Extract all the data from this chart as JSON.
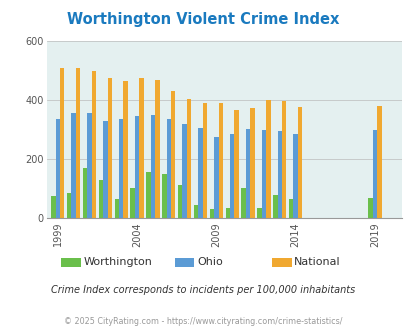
{
  "title": "Worthington Violent Crime Index",
  "subtitle": "Crime Index corresponds to incidents per 100,000 inhabitants",
  "footer": "© 2025 CityRating.com - https://www.cityrating.com/crime-statistics/",
  "years": [
    1999,
    2000,
    2001,
    2002,
    2003,
    2004,
    2005,
    2006,
    2007,
    2008,
    2009,
    2010,
    2011,
    2012,
    2013,
    2014,
    2015,
    2016,
    2017,
    2018,
    2019,
    2020
  ],
  "worthington": [
    75,
    85,
    170,
    130,
    65,
    100,
    155,
    150,
    113,
    45,
    30,
    35,
    100,
    35,
    78,
    65,
    0,
    0,
    0,
    0,
    68,
    0
  ],
  "ohio": [
    335,
    355,
    355,
    330,
    335,
    345,
    350,
    335,
    320,
    305,
    275,
    285,
    303,
    300,
    295,
    285,
    0,
    0,
    0,
    0,
    297,
    0
  ],
  "national": [
    510,
    510,
    500,
    475,
    465,
    475,
    470,
    430,
    404,
    390,
    390,
    365,
    374,
    400,
    398,
    375,
    0,
    0,
    0,
    0,
    380,
    0
  ],
  "tick_years": [
    1999,
    2004,
    2009,
    2014,
    2019
  ],
  "ylim": [
    0,
    600
  ],
  "yticks": [
    0,
    200,
    400,
    600
  ],
  "worthington_color": "#6abf4b",
  "ohio_color": "#5b9bd5",
  "national_color": "#f0a830",
  "bg_color": "#e4f0f0",
  "title_color": "#1a7abf",
  "grid_color": "#bbbbbb",
  "subtitle_color": "#333333",
  "footer_color": "#999999"
}
